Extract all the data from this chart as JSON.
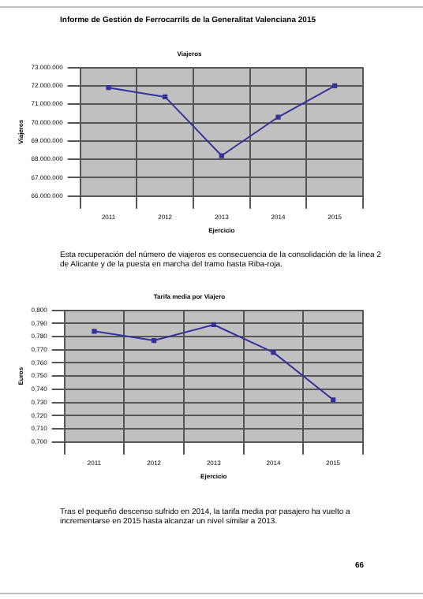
{
  "chart_data": [
    {
      "type": "line",
      "title": "Viajeros",
      "xlabel": "Ejercicio",
      "ylabel": "Viajeros",
      "categories": [
        "2011",
        "2012",
        "2013",
        "2014",
        "2015"
      ],
      "series": [
        {
          "color": "#333399",
          "values": [
            71900000,
            71400000,
            68200000,
            70300000,
            72000000
          ]
        }
      ],
      "ylim": [
        66000000,
        73000000
      ],
      "yticks": [
        {
          "value": 66000000,
          "label": "66.000.000"
        },
        {
          "value": 67000000,
          "label": "67.000.000"
        },
        {
          "value": 68000000,
          "label": "68.000.000"
        },
        {
          "value": 69000000,
          "label": "69.000.000"
        },
        {
          "value": 70000000,
          "label": "70.000.000"
        },
        {
          "value": 71000000,
          "label": "71.000.000"
        },
        {
          "value": 72000000,
          "label": "72.000.000"
        },
        {
          "value": 73000000,
          "label": "73.000.000"
        }
      ],
      "grid": true,
      "legend": false,
      "marker": "square",
      "line_style": "solid",
      "annotations": [
        "Informe de Gestión de Ferrocarrils de la Generalitat Valenciana 2015",
        "Esta recuperación del número de viajeros es consecuencia de la consolidación de la línea 2 de Alicante y de la puesta en marcha del tramo hasta Riba-roja."
      ]
    },
    {
      "type": "line",
      "title": "Tarifa media por Viajero",
      "xlabel": "Ejercicio",
      "ylabel": "Euros",
      "categories": [
        "2011",
        "2012",
        "2013",
        "2014",
        "2015"
      ],
      "series": [
        {
          "color": "#333399",
          "values": [
            0.784,
            0.777,
            0.789,
            0.768,
            0.732
          ]
        }
      ],
      "ylim": [
        0.7,
        0.8
      ],
      "yticks": [
        {
          "value": 0.7,
          "label": "0,700"
        },
        {
          "value": 0.71,
          "label": "0,710"
        },
        {
          "value": 0.72,
          "label": "0,720"
        },
        {
          "value": 0.73,
          "label": "0,730"
        },
        {
          "value": 0.74,
          "label": "0,740"
        },
        {
          "value": 0.75,
          "label": "0,750"
        },
        {
          "value": 0.76,
          "label": "0,760"
        },
        {
          "value": 0.77,
          "label": "0,770"
        },
        {
          "value": 0.78,
          "label": "0,780"
        },
        {
          "value": 0.79,
          "label": "0,790"
        },
        {
          "value": 0.8,
          "label": "0,800"
        }
      ],
      "grid": true,
      "legend": false,
      "marker": "square",
      "line_style": "solid",
      "annotations": [
        "Tras el pequeño descenso sufrido en 2014, la tarifa media por pasajero ha vuelto a incrementarse en 2015 hasta alcanzar un nivel similar a 2013.",
        "66"
      ]
    }
  ]
}
